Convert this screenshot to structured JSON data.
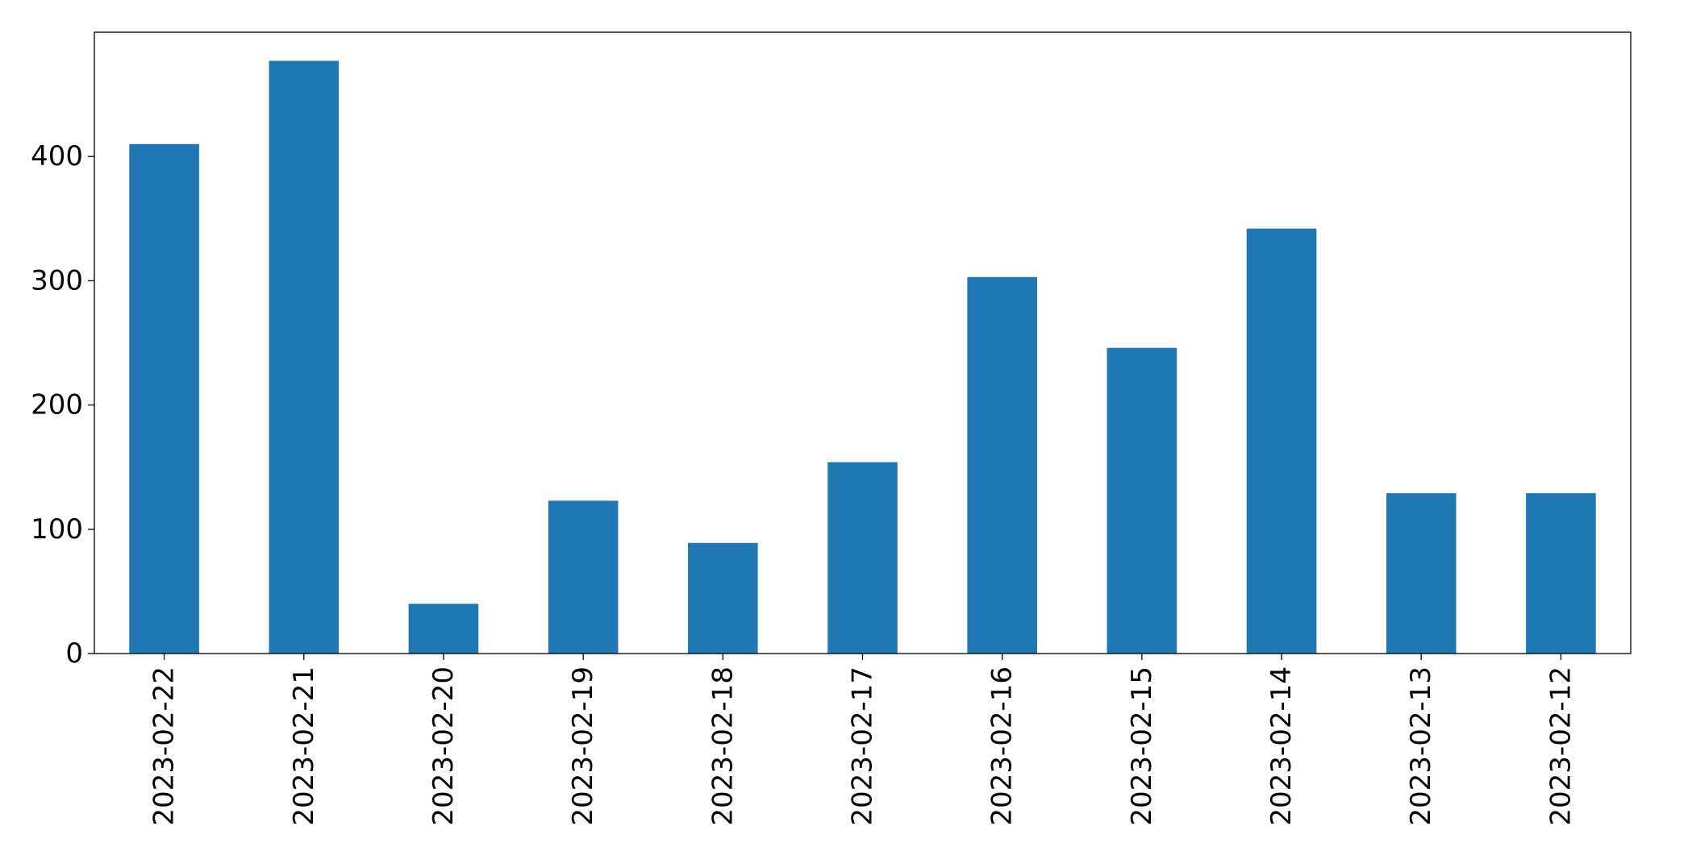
{
  "chart_data": {
    "type": "bar",
    "categories": [
      "2023-02-22",
      "2023-02-21",
      "2023-02-20",
      "2023-02-19",
      "2023-02-18",
      "2023-02-17",
      "2023-02-16",
      "2023-02-15",
      "2023-02-14",
      "2023-02-13",
      "2023-02-12"
    ],
    "values": [
      410,
      477,
      40,
      123,
      89,
      154,
      303,
      246,
      342,
      129,
      129
    ],
    "title": "",
    "xlabel": "",
    "ylabel": "",
    "ylim": [
      0,
      500
    ],
    "yticks": [
      0,
      100,
      200,
      300,
      400
    ],
    "grid": false,
    "legend": "none",
    "bar_color": "#1f77b4",
    "x_tick_rotation": "vertical"
  }
}
